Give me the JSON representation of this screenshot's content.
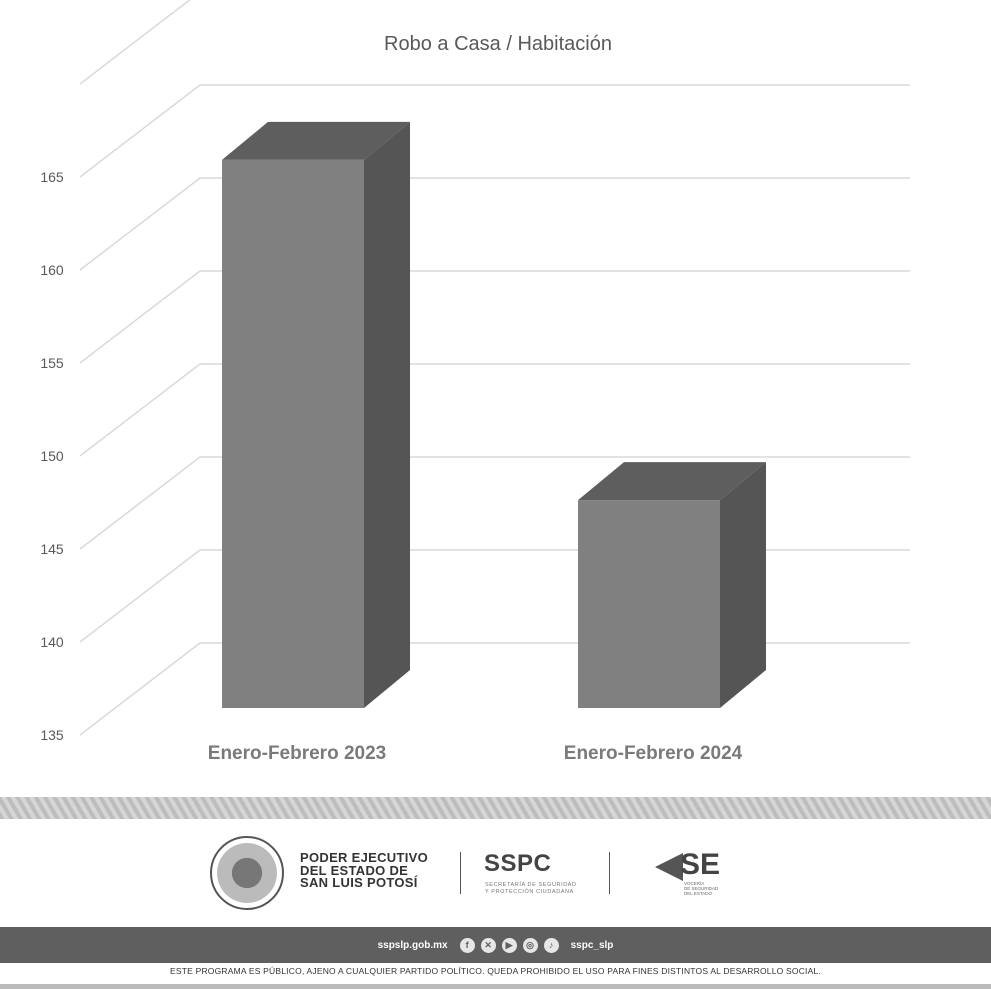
{
  "chart_data": {
    "type": "bar",
    "style": "3d-column",
    "title": "Robo a Casa / Habitación",
    "categories": [
      "Enero-Febrero 2023",
      "Enero-Febrero 2024"
    ],
    "values": [
      164,
      146
    ],
    "xlabel": "",
    "ylabel": "",
    "ylim": [
      135,
      165
    ],
    "yticks": [
      165,
      160,
      155,
      150,
      145,
      140,
      135
    ],
    "grid": true,
    "colors": {
      "front": "#808080",
      "top": "#5e5e5e",
      "side": "#555555",
      "grid": "#d9d9d9",
      "text": "#595959"
    }
  },
  "footer": {
    "gov_line1": "PODER EJECUTIVO",
    "gov_line2": "DEL ESTADO DE",
    "gov_line3": "SAN LUIS POTOSÍ",
    "sspc": "SSPC",
    "sspc_sub1": "SECRETARÍA DE SEGURIDAD",
    "sspc_sub2": "Y PROTECCIÓN CIUDADANA",
    "se": "SE",
    "se_sub1": "VOCERÍA",
    "se_sub2": "DE SEGURIDAD",
    "se_sub3": "DEL ESTADO",
    "website": "sspslp.gob.mx",
    "handle": "sspc_slp",
    "legal": "ESTE PROGRAMA ES PÚBLICO, AJENO A CUALQUIER  PARTIDO POLÍTICO. QUEDA PROHIBIDO EL USO PARA FINES DISTINTOS AL DESARROLLO SOCIAL."
  }
}
